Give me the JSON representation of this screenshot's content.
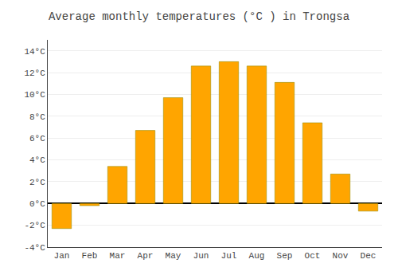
{
  "chart_data": {
    "type": "bar",
    "title": "Average monthly temperatures (°C ) in Trongsa",
    "categories": [
      "Jan",
      "Feb",
      "Mar",
      "Apr",
      "May",
      "Jun",
      "Jul",
      "Aug",
      "Sep",
      "Oct",
      "Nov",
      "Dec"
    ],
    "values": [
      -2.3,
      -0.2,
      3.4,
      6.7,
      9.7,
      12.6,
      13.0,
      12.6,
      11.1,
      7.4,
      2.7,
      -0.7
    ],
    "color": "#FFA500",
    "ylim": [
      -4,
      15
    ],
    "yticks": [
      {
        "value": -4,
        "label": "-4°C"
      },
      {
        "value": -2,
        "label": "-2°C"
      },
      {
        "value": 0,
        "label": "0°C"
      },
      {
        "value": 2,
        "label": "2°C"
      },
      {
        "value": 4,
        "label": "4°C"
      },
      {
        "value": 6,
        "label": "6°C"
      },
      {
        "value": 8,
        "label": "8°C"
      },
      {
        "value": 10,
        "label": "10°C"
      },
      {
        "value": 12,
        "label": "12°C"
      },
      {
        "value": 14,
        "label": "14°C"
      }
    ],
    "grid": true
  }
}
